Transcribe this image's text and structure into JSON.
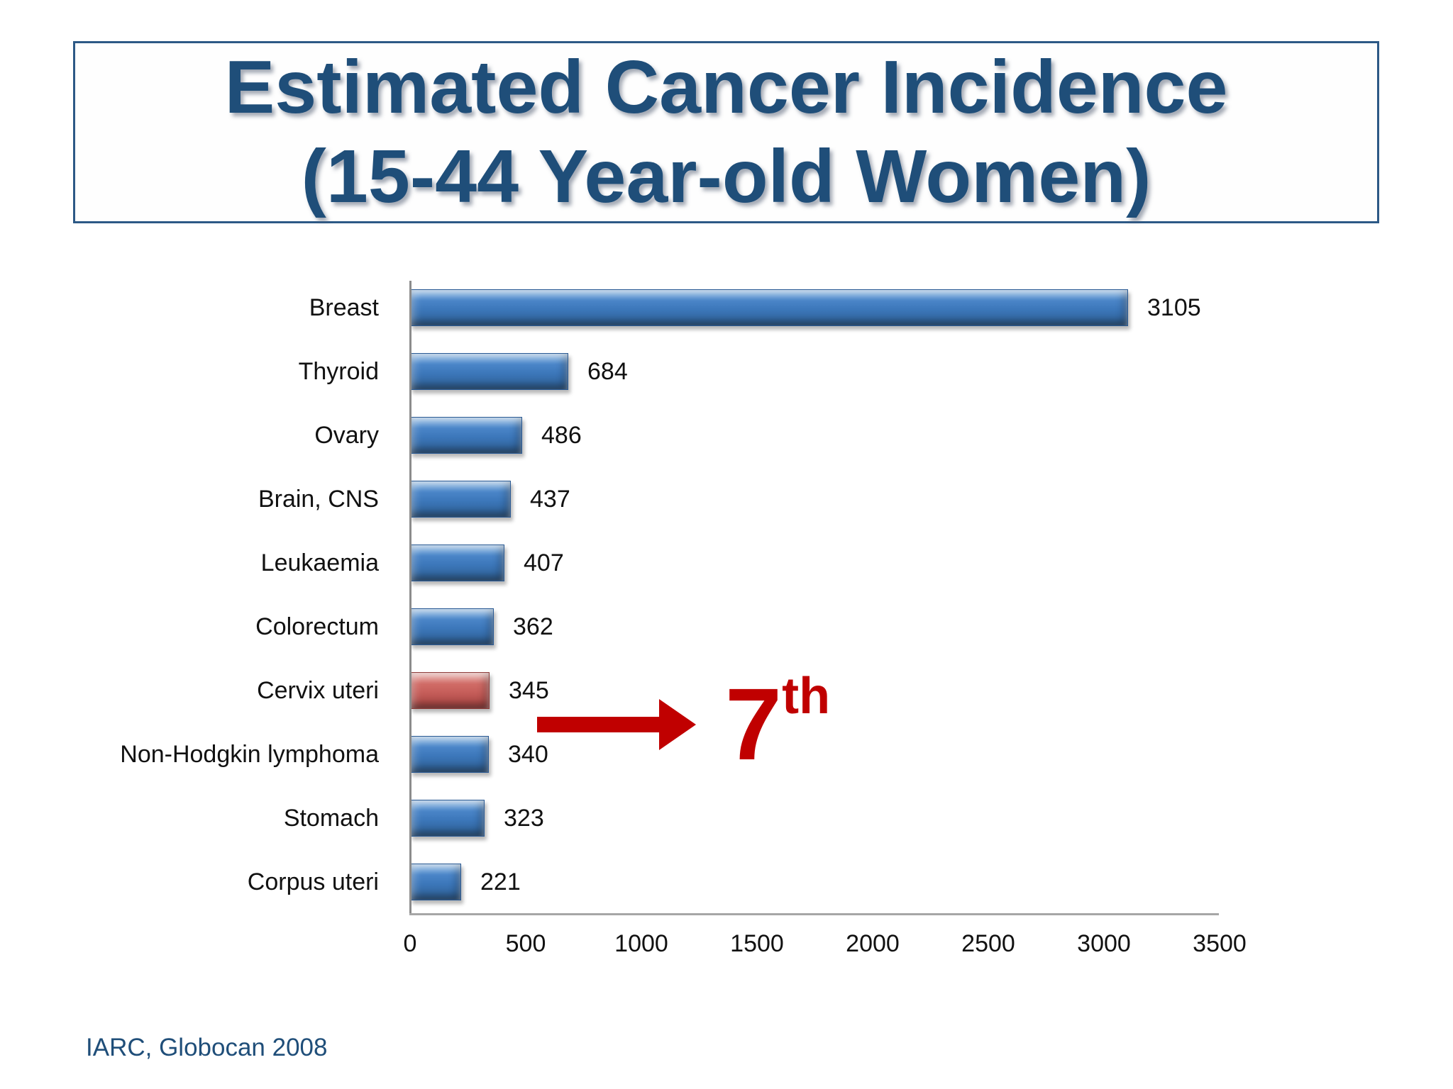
{
  "slide": {
    "title": {
      "line1": "Estimated Cancer Incidence",
      "line2": "(15-44 Year-old Women)"
    },
    "source": "IARC, Globocan 2008",
    "rank_annotation": {
      "number": "7",
      "suffix": "th"
    }
  },
  "chart_data": {
    "type": "bar",
    "orientation": "horizontal",
    "title": "Estimated Cancer Incidence (15-44 Year-old Women)",
    "categories": [
      "Breast",
      "Thyroid",
      "Ovary",
      "Brain, CNS",
      "Leukaemia",
      "Colorectum",
      "Cervix uteri",
      "Non-Hodgkin lymphoma",
      "Stomach",
      "Corpus uteri"
    ],
    "values": [
      3105,
      684,
      486,
      437,
      407,
      362,
      345,
      340,
      323,
      221
    ],
    "value_labels": [
      "3105",
      "684",
      "486",
      "437",
      "407",
      "362",
      "345",
      "340",
      "323",
      "221"
    ],
    "highlight_index": 6,
    "highlight_category": "Cervix uteri",
    "highlight_note": "7th",
    "xlabel": "",
    "ylabel": "",
    "xlim": [
      0,
      3500
    ],
    "x_ticks": [
      "0",
      "500",
      "1000",
      "1500",
      "2000",
      "2500",
      "3000",
      "3500"
    ],
    "grid": false,
    "legend": false,
    "colors": {
      "bar": "#3C77BA",
      "highlight_bar": "#C96561",
      "annotation": "#C00000",
      "axis": "#8C8C8C",
      "title_text": "#1F4E79",
      "source_text": "#1F4E79",
      "title_border": "#2D5986",
      "label_text": "#111111"
    }
  }
}
